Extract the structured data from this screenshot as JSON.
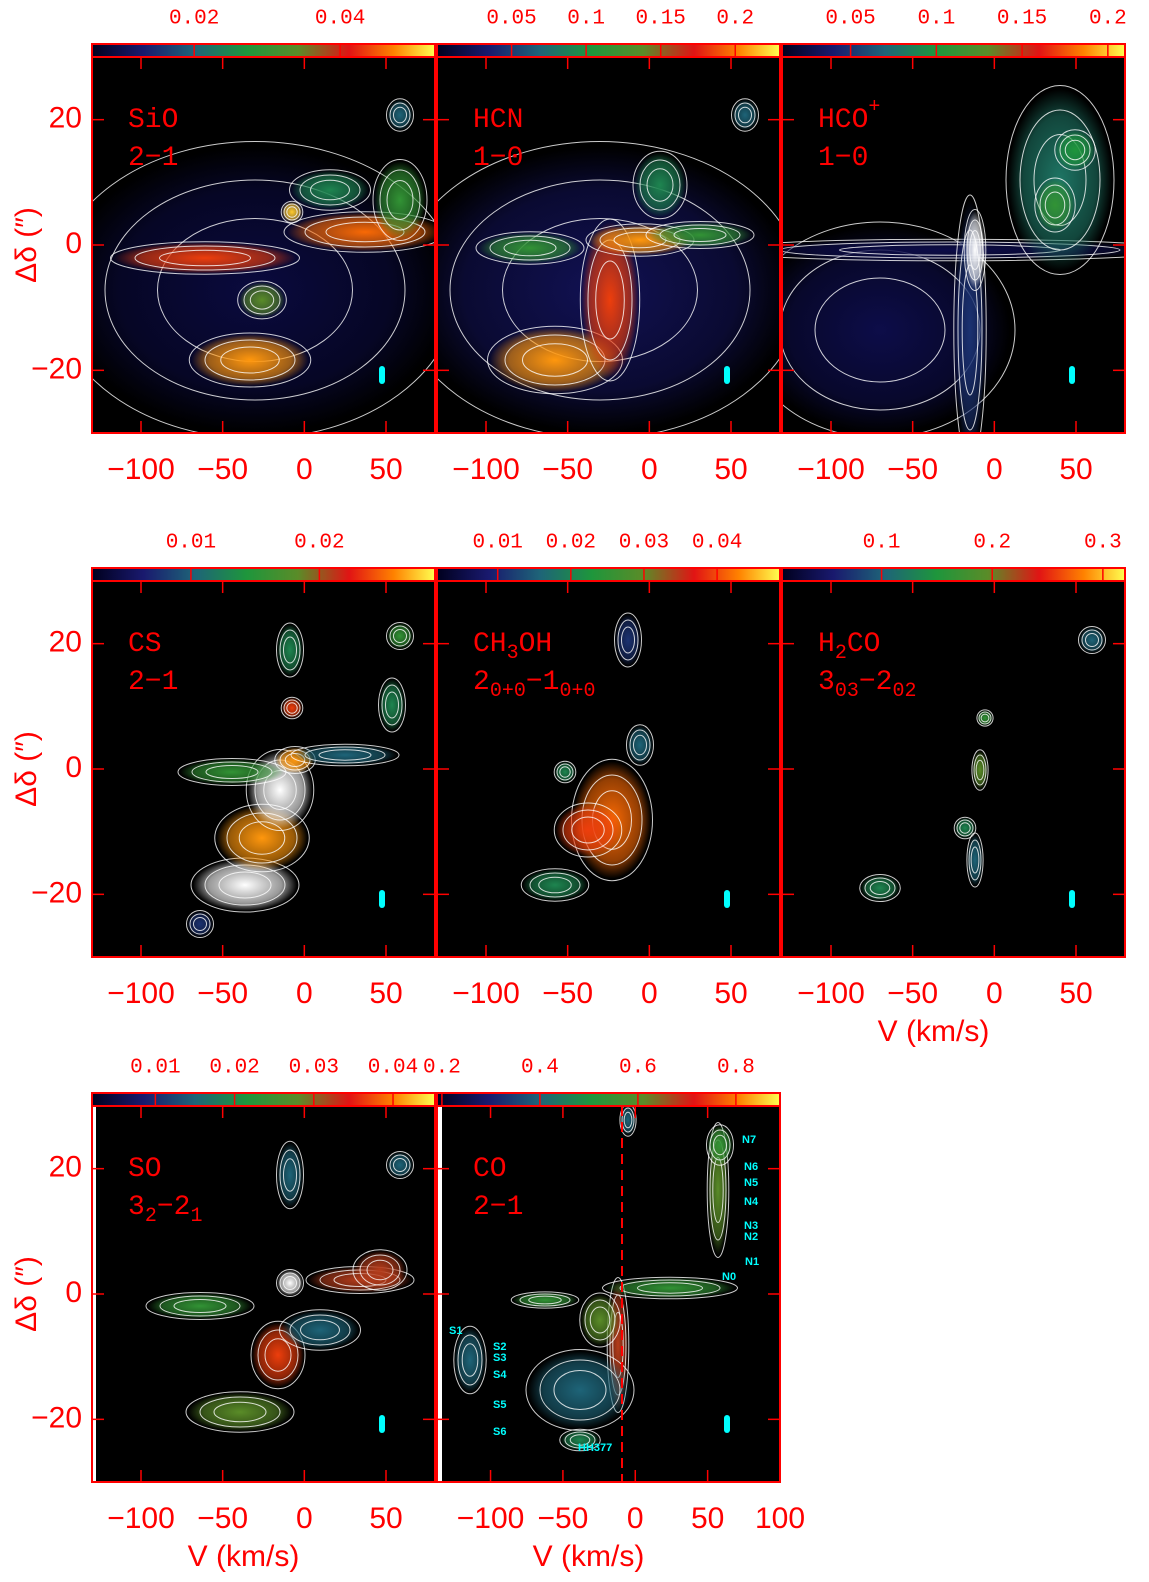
{
  "chart_data": [
    {
      "type": "heatmap",
      "label": [
        [
          "SiO"
        ],
        [
          "2−1"
        ]
      ],
      "xlim": [
        -130,
        80
      ],
      "xticks": [
        {
          "value": -100,
          "label": "−100"
        },
        {
          "value": -50,
          "label": "−50"
        },
        0,
        50
      ],
      "ylim": [
        -30,
        30
      ],
      "yticks": [
        {
          "value": -20,
          "label": "−20"
        },
        0,
        20
      ],
      "ylabel": "Δδ (″)",
      "colorbar": {
        "lim": [
          0.006,
          0.053
        ],
        "ticks": [
          0.02,
          0.04
        ]
      }
    },
    {
      "type": "heatmap",
      "label": [
        [
          "HCN"
        ],
        [
          "1−0"
        ]
      ],
      "xlim": [
        -130,
        80
      ],
      "xticks": [
        {
          "value": -100,
          "label": "−100"
        },
        {
          "value": -50,
          "label": "−50"
        },
        0,
        50
      ],
      "ylim": [
        -30,
        30
      ],
      "yticks": [
        {
          "value": -20,
          "label": "−20"
        },
        0,
        20
      ],
      "colorbar": {
        "lim": [
          0.0,
          0.23
        ],
        "ticks": [
          0.05,
          0.1,
          0.15,
          0.2
        ]
      }
    },
    {
      "type": "heatmap",
      "label": [
        [
          "HCO",
          {
            "sup": "+"
          }
        ],
        [
          "1−0"
        ]
      ],
      "xlim": [
        -130,
        80
      ],
      "xticks": [
        {
          "value": -100,
          "label": "−100"
        },
        {
          "value": -50,
          "label": "−50"
        },
        0,
        50
      ],
      "ylim": [
        -30,
        30
      ],
      "yticks": [
        {
          "value": -20,
          "label": "−20"
        },
        0,
        20
      ],
      "colorbar": {
        "lim": [
          0.01,
          0.21
        ],
        "ticks": [
          0.05,
          0.1,
          0.15,
          0.2
        ]
      }
    },
    {
      "type": "heatmap",
      "label": [
        [
          "CS"
        ],
        [
          "2−1"
        ]
      ],
      "xlim": [
        -130,
        80
      ],
      "xticks": [
        {
          "value": -100,
          "label": "−100"
        },
        {
          "value": -50,
          "label": "−50"
        },
        0,
        50
      ],
      "ylim": [
        -30,
        30
      ],
      "yticks": [
        {
          "value": -20,
          "label": "−20"
        },
        0,
        20
      ],
      "ylabel": "Δδ (″)",
      "colorbar": {
        "lim": [
          0.0023,
          0.029
        ],
        "ticks": [
          0.01,
          0.02
        ]
      }
    },
    {
      "type": "heatmap",
      "label": [
        [
          "CH",
          {
            "sub": "3"
          },
          "OH"
        ],
        [
          "2",
          {
            "sub": "0+0"
          },
          "−1",
          {
            "sub": "0+0"
          }
        ]
      ],
      "xlim": [
        -130,
        80
      ],
      "xticks": [
        {
          "value": -100,
          "label": "−100"
        },
        {
          "value": -50,
          "label": "−50"
        },
        0,
        50
      ],
      "ylim": [
        -30,
        30
      ],
      "yticks": [
        {
          "value": -20,
          "label": "−20"
        },
        0,
        20
      ],
      "colorbar": {
        "lim": [
          0.0017,
          0.0486
        ],
        "ticks": [
          0.01,
          0.02,
          0.03,
          0.04
        ]
      }
    },
    {
      "type": "heatmap",
      "label": [
        [
          "H",
          {
            "sub": "2"
          },
          "CO"
        ],
        [
          "3",
          {
            "sub": "03"
          },
          "−2",
          {
            "sub": "02"
          }
        ]
      ],
      "xlim": [
        -130,
        80
      ],
      "xticks": [
        {
          "value": -100,
          "label": "−100"
        },
        {
          "value": -50,
          "label": "−50"
        },
        0,
        50
      ],
      "ylim": [
        -30,
        30
      ],
      "yticks": [
        {
          "value": -20,
          "label": "−20"
        },
        0,
        20
      ],
      "xlabel": "V (km/s)",
      "colorbar": {
        "lim": [
          0.01,
          0.32
        ],
        "ticks": [
          0.1,
          0.2,
          0.3
        ]
      }
    },
    {
      "type": "heatmap",
      "label": [
        [
          "SO"
        ],
        [
          "3",
          {
            "sub": "2"
          },
          "−2",
          {
            "sub": "1"
          }
        ]
      ],
      "xlim": [
        -130,
        80
      ],
      "xticks": [
        {
          "value": -100,
          "label": "−100"
        },
        {
          "value": -50,
          "label": "−50"
        },
        0,
        50
      ],
      "ylim": [
        -30,
        30
      ],
      "yticks": [
        {
          "value": -20,
          "label": "−20"
        },
        0,
        20
      ],
      "ylabel": "Δδ (″)",
      "xlabel": "V (km/s)",
      "colorbar": {
        "lim": [
          0.002,
          0.0453
        ],
        "ticks": [
          0.01,
          0.02,
          0.03,
          0.04
        ]
      }
    },
    {
      "type": "heatmap",
      "label": [
        [
          "CO"
        ],
        [
          "2−1"
        ]
      ],
      "xlim": [
        -137,
        100
      ],
      "xticks": [
        {
          "value": -100,
          "label": "−100"
        },
        {
          "value": -50,
          "label": "−50"
        },
        0,
        50,
        100
      ],
      "ylim": [
        -30,
        30
      ],
      "yticks": [
        {
          "value": -20,
          "label": "−20"
        },
        0,
        20
      ],
      "xlabel": "V (km/s)",
      "colorbar": {
        "lim": [
          0.19,
          0.89
        ],
        "ticks": [
          0.2,
          0.4,
          0.6,
          0.8
        ]
      },
      "annotations": [
        "N7",
        "N6",
        "N5",
        "N4",
        "N3",
        "N2",
        "N1",
        "N0",
        "S1",
        "S2",
        "S3",
        "S4",
        "S5",
        "S6",
        "HH377"
      ]
    }
  ]
}
